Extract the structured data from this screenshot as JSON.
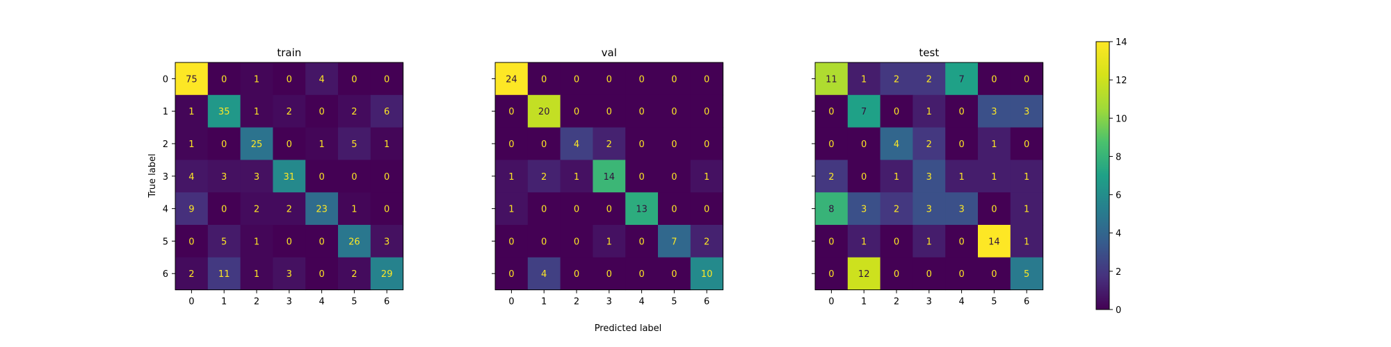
{
  "chart_data": {
    "type": "heatmap",
    "xlabel": "Predicted label",
    "ylabel": "True label",
    "labels": [
      "0",
      "1",
      "2",
      "3",
      "4",
      "5",
      "6"
    ],
    "panels": [
      {
        "title": "train",
        "matrix": [
          [
            75,
            0,
            1,
            0,
            4,
            0,
            0
          ],
          [
            1,
            35,
            1,
            2,
            0,
            2,
            6
          ],
          [
            1,
            0,
            25,
            0,
            1,
            5,
            1
          ],
          [
            4,
            3,
            3,
            31,
            0,
            0,
            0
          ],
          [
            9,
            0,
            2,
            2,
            23,
            1,
            0
          ],
          [
            0,
            5,
            1,
            0,
            0,
            26,
            3
          ],
          [
            2,
            11,
            1,
            3,
            0,
            2,
            29
          ]
        ]
      },
      {
        "title": "val",
        "matrix": [
          [
            24,
            0,
            0,
            0,
            0,
            0,
            0
          ],
          [
            0,
            20,
            0,
            0,
            0,
            0,
            0
          ],
          [
            0,
            0,
            4,
            2,
            0,
            0,
            0
          ],
          [
            1,
            2,
            1,
            14,
            0,
            0,
            1
          ],
          [
            1,
            0,
            0,
            0,
            13,
            0,
            0
          ],
          [
            0,
            0,
            0,
            1,
            0,
            7,
            2
          ],
          [
            0,
            4,
            0,
            0,
            0,
            0,
            10
          ]
        ]
      },
      {
        "title": "test",
        "matrix": [
          [
            11,
            1,
            2,
            2,
            7,
            0,
            0
          ],
          [
            0,
            7,
            0,
            1,
            0,
            3,
            3
          ],
          [
            0,
            0,
            4,
            2,
            0,
            1,
            0
          ],
          [
            2,
            0,
            1,
            3,
            1,
            1,
            1
          ],
          [
            8,
            3,
            2,
            3,
            3,
            0,
            1
          ],
          [
            0,
            1,
            0,
            1,
            0,
            14,
            1
          ],
          [
            0,
            12,
            0,
            0,
            0,
            0,
            5
          ]
        ]
      }
    ],
    "colorbar": {
      "colormap": "viridis",
      "range": [
        0,
        14
      ],
      "ticks": [
        0,
        2,
        4,
        6,
        8,
        10,
        12,
        14
      ]
    },
    "colors": {
      "text_on_dark": "#fde725",
      "text_on_light": "#30123b"
    }
  }
}
